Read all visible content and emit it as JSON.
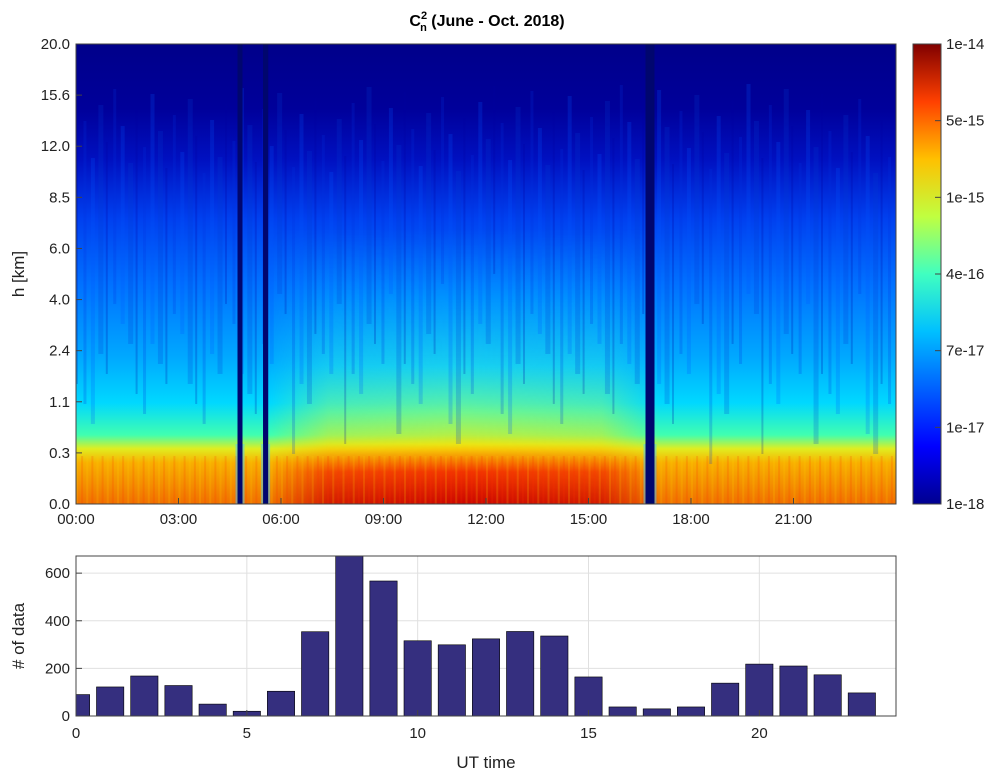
{
  "colors": {
    "bar_fill": "#352f7f",
    "bar_stroke": "#000000",
    "grid": "#e0e0e0",
    "jet_stops": [
      "#00008f",
      "#0000ff",
      "#0080ff",
      "#00ffff",
      "#80ff80",
      "#ffff00",
      "#ff8000",
      "#ff0000",
      "#800000"
    ]
  },
  "chart_data": [
    {
      "type": "heatmap",
      "title": {
        "symbol_main": "C",
        "symbol_sup": "2",
        "symbol_sub": "n",
        "rest": " (June - Oct. 2018)"
      },
      "xlabel": "",
      "ylabel": "h [km]",
      "x_tick_labels": [
        "00:00",
        "03:00",
        "06:00",
        "09:00",
        "12:00",
        "15:00",
        "18:00",
        "21:00"
      ],
      "x_range_hours": [
        0,
        24
      ],
      "y_tick_labels": [
        "0.0",
        "0.3",
        "1.1",
        "2.4",
        "4.0",
        "6.0",
        "8.5",
        "12.0",
        "15.6",
        "20.0"
      ],
      "colorbar": {
        "labels": [
          "1e-14",
          "5e-15",
          "1e-15",
          "4e-16",
          "7e-17",
          "1e-17",
          "1e-18"
        ],
        "colormap": "jet",
        "scale": "log"
      },
      "notable_features": {
        "low_value_columns_hours": [
          4.8,
          5.55,
          16.8
        ],
        "max_region": "surface layer 09:00-16:30, below 0.3 km"
      }
    },
    {
      "type": "bar",
      "title": "",
      "xlabel": "UT time",
      "ylabel": "# of data",
      "x": [
        0,
        1,
        2,
        3,
        4,
        5,
        6,
        7,
        8,
        9,
        10,
        11,
        12,
        13,
        14,
        15,
        16,
        17,
        18,
        19,
        20,
        21,
        22,
        23
      ],
      "values": [
        90,
        122,
        168,
        128,
        50,
        20,
        104,
        354,
        672,
        567,
        316,
        299,
        324,
        355,
        336,
        164,
        38,
        30,
        38,
        138,
        218,
        210,
        173,
        97
      ],
      "xlim": [
        0,
        24
      ],
      "ylim": [
        0,
        672
      ],
      "x_ticks": [
        0,
        5,
        10,
        15,
        20
      ],
      "y_ticks": [
        0,
        200,
        400,
        600
      ],
      "grid": true
    }
  ]
}
